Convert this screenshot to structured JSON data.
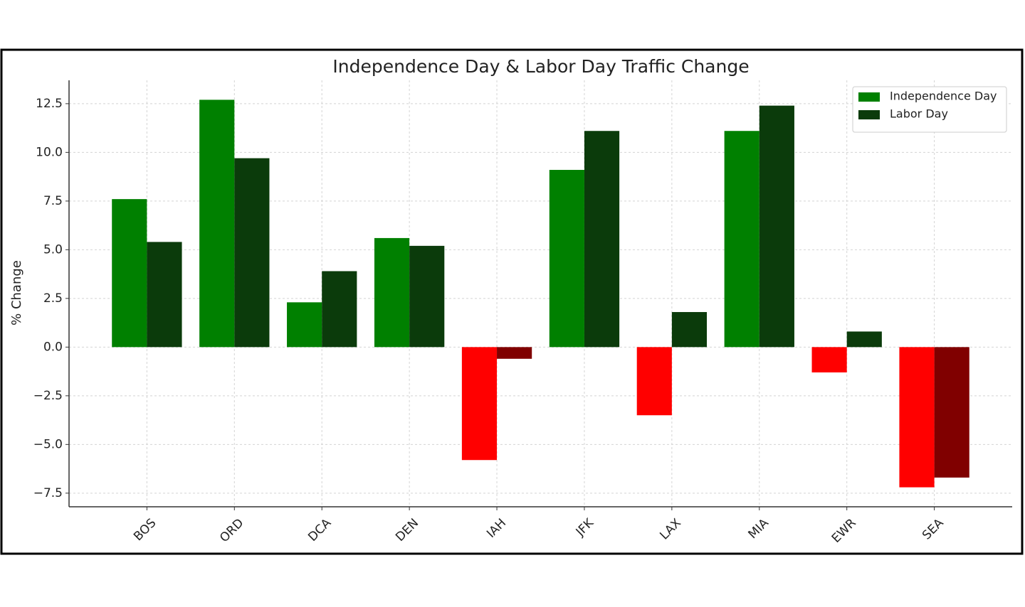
{
  "chart_data": {
    "type": "bar",
    "title": "Independence Day & Labor Day Traffic Change",
    "y_label": "% Change",
    "categories": [
      "BOS",
      "ORD",
      "DCA",
      "DEN",
      "IAH",
      "JFK",
      "LAX",
      "MIA",
      "EWR",
      "SEA"
    ],
    "series": [
      {
        "name": "Independence Day",
        "color": "#008000",
        "negative_color": "#ff0000",
        "values": [
          7.6,
          12.7,
          2.3,
          5.6,
          -5.8,
          9.1,
          -3.5,
          11.1,
          -1.3,
          -7.2
        ]
      },
      {
        "name": "Labor Day",
        "color": "#0b3b0b",
        "negative_color": "#800000",
        "values": [
          5.4,
          9.7,
          3.9,
          5.2,
          -0.6,
          11.1,
          1.8,
          12.4,
          0.8,
          -6.7
        ]
      }
    ],
    "ylim": [
      -8.2,
      13.7
    ],
    "yticks": [
      {
        "value": -7.5,
        "label": "−7.5"
      },
      {
        "value": -5,
        "label": "−5.0"
      },
      {
        "value": -2.5,
        "label": "−2.5"
      },
      {
        "value": 0,
        "label": "0.0"
      },
      2.5,
      {
        "value": 5,
        "label": "5.0"
      },
      7.5,
      {
        "value": 10,
        "label": "10.0"
      },
      12.5
    ],
    "grid": true,
    "legend": "upper right"
  }
}
